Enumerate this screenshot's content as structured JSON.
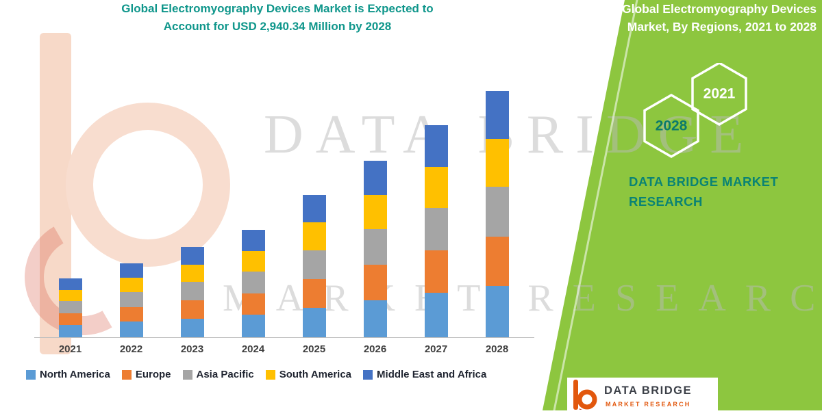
{
  "chart_data": {
    "type": "stacked-bar",
    "title": "Global Electromyography Devices Market is Expected to Account for USD 2,940.34 Million by 2028",
    "unit": "USD Million",
    "categories": [
      "2021",
      "2022",
      "2023",
      "2024",
      "2025",
      "2026",
      "2027",
      "2028"
    ],
    "series": [
      {
        "name": "North America",
        "color": "#5B9BD5",
        "values": [
          150,
          185,
          225,
          270,
          355,
          440,
          530,
          615.34
        ]
      },
      {
        "name": "Europe",
        "color": "#ED7D31",
        "values": [
          140,
          175,
          215,
          255,
          340,
          425,
          505,
          590
        ]
      },
      {
        "name": "Asia Pacific",
        "color": "#A5A5A5",
        "values": [
          145,
          180,
          220,
          260,
          345,
          425,
          510,
          590
        ]
      },
      {
        "name": "South America",
        "color": "#FFC000",
        "values": [
          130,
          170,
          210,
          245,
          330,
          410,
          490,
          575
        ]
      },
      {
        "name": "Middle East and Africa",
        "color": "#4472C4",
        "values": [
          135,
          170,
          210,
          250,
          330,
          410,
          495,
          570
        ]
      }
    ],
    "totals": [
      700,
      880,
      1080,
      1280,
      1700,
      2110,
      2530,
      2940.34
    ],
    "ylim": [
      0,
      3000
    ],
    "grid": false,
    "legend_position": "bottom"
  },
  "side_panel": {
    "bg_color": "#8dc63f",
    "title": "Global Electromyography Devices Market, By Regions, 2021 to 2028",
    "hexagons": [
      {
        "label": "2028",
        "text_color": "#0c7a6b"
      },
      {
        "label": "2021",
        "text_color": "#ffffff"
      }
    ],
    "brand": "DATA BRIDGE MARKET RESEARCH"
  },
  "watermark": {
    "line1": "DATA BRIDGE",
    "line2": "MARKET RESEARCH"
  },
  "footer": {
    "brand": "DATA BRIDGE",
    "sub": "MARKET RESEARCH"
  },
  "colors": {
    "title_teal": "#0f968b",
    "panel_green": "#8dc63f",
    "brand_orange": "#e2570d"
  }
}
